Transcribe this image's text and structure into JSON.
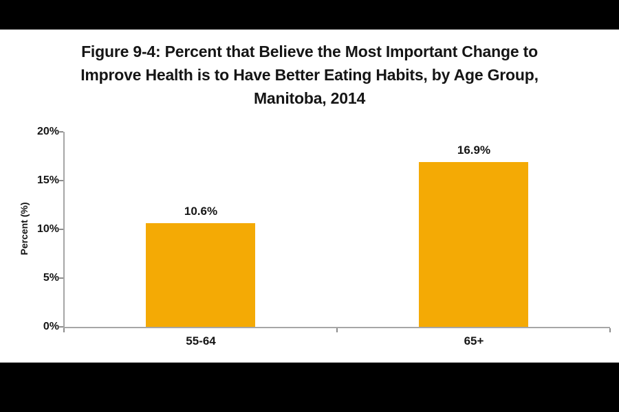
{
  "title": {
    "lines": [
      "Figure 9-4: Percent that Believe the Most Important Change to",
      "Improve Health is to Have Better Eating Habits, by Age Group,",
      "Manitoba, 2014"
    ]
  },
  "chart_data": {
    "type": "bar",
    "title": "Figure 9-4: Percent that Believe the Most Important Change to Improve Health is to Have Better Eating Habits, by Age Group, Manitoba, 2014",
    "categories": [
      "55-64",
      "65+"
    ],
    "values": [
      10.6,
      16.9
    ],
    "value_labels": [
      "10.6%",
      "16.9%"
    ],
    "xlabel": "",
    "ylabel": "Percent (%)",
    "ylim": [
      0,
      20
    ],
    "ytick_values": [
      0,
      5,
      10,
      15,
      20
    ],
    "ytick_labels": [
      "0%",
      "5%",
      "10%",
      "15%",
      "20%"
    ],
    "grid": false,
    "legend": false,
    "colors": {
      "bar": "#F4AA05",
      "axis": "#A6A6A6",
      "tick": "#8C8C8C",
      "text": "#151515",
      "band": "#000000",
      "background": "#FFFFFF"
    }
  }
}
